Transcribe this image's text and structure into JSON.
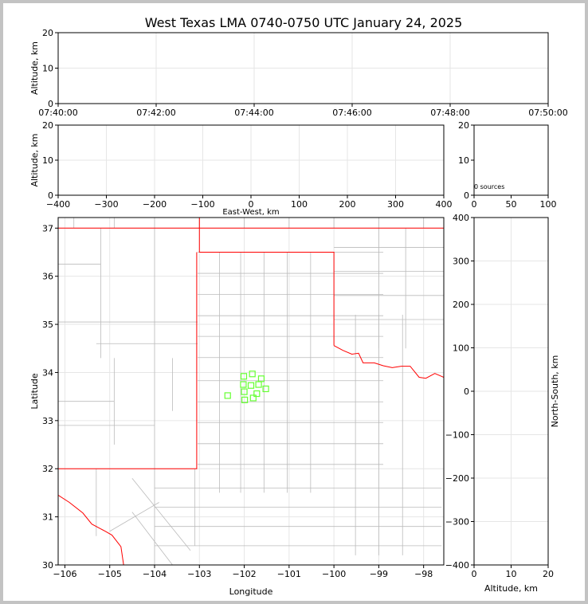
{
  "title": "West Texas LMA 0740-0750 UTC January 24, 2025",
  "colors": {
    "state": "#ff0000",
    "county": "#bbbbbb",
    "grid": "#e6e6e6",
    "source": "#66ff33",
    "axis": "#000000"
  },
  "panels": {
    "time_height": {
      "ylabel": "Altitude, km",
      "xticks": [
        "07:40:00",
        "07:42:00",
        "07:44:00",
        "07:46:00",
        "07:48:00",
        "07:50:00"
      ],
      "yticks": [
        "0",
        "10",
        "20"
      ]
    },
    "ew_height": {
      "ylabel": "Altitude, km",
      "xlabel": "East-West, km",
      "xticks": [
        "−400",
        "−300",
        "−200",
        "−100",
        "0",
        "100",
        "200",
        "300",
        "400"
      ],
      "yticks": [
        "0",
        "10",
        "20"
      ]
    },
    "hist": {
      "xticks": [
        "0",
        "50",
        "100"
      ],
      "yticks": [
        "0",
        "10",
        "20"
      ],
      "note": "0 sources"
    },
    "map": {
      "xlabel": "Longitude",
      "ylabel": "Latitude",
      "xticks": [
        "−106",
        "−105",
        "−104",
        "−103",
        "−102",
        "−101",
        "−100",
        "−99",
        "−98"
      ],
      "yticks": [
        "30",
        "31",
        "32",
        "33",
        "34",
        "35",
        "36",
        "37"
      ]
    },
    "ns_height": {
      "ylabel": "North-South, km",
      "xlabel": "Altitude, km",
      "xticks": [
        "0",
        "10",
        "20"
      ],
      "yticks": [
        "−400",
        "−300",
        "−200",
        "−100",
        "0",
        "100",
        "200",
        "300",
        "400"
      ]
    }
  },
  "chart_data": [
    {
      "type": "scatter",
      "panel": "time_height",
      "xlim": [
        "07:40:00",
        "07:50:00"
      ],
      "ylim": [
        0,
        20
      ],
      "grid": true,
      "points": []
    },
    {
      "type": "scatter",
      "panel": "ew_height",
      "xlim": [
        -400,
        400
      ],
      "ylim": [
        0,
        20
      ],
      "grid": true,
      "points": []
    },
    {
      "type": "bar",
      "panel": "hist",
      "xlim": [
        0,
        100
      ],
      "ylim": [
        0,
        20
      ],
      "values": []
    },
    {
      "type": "scatter",
      "panel": "map",
      "xlim": [
        -106.15,
        -97.55
      ],
      "ylim": [
        30.0,
        37.22
      ],
      "grid": true,
      "points": [
        {
          "lon": -102.01,
          "lat": 33.92
        },
        {
          "lon": -101.82,
          "lat": 33.97
        },
        {
          "lon": -101.62,
          "lat": 33.87
        },
        {
          "lon": -102.02,
          "lat": 33.75
        },
        {
          "lon": -101.85,
          "lat": 33.73
        },
        {
          "lon": -101.68,
          "lat": 33.75
        },
        {
          "lon": -101.52,
          "lat": 33.66
        },
        {
          "lon": -102.0,
          "lat": 33.6
        },
        {
          "lon": -101.72,
          "lat": 33.56
        },
        {
          "lon": -102.37,
          "lat": 33.52
        },
        {
          "lon": -101.8,
          "lat": 33.47
        },
        {
          "lon": -101.99,
          "lat": 33.43
        }
      ]
    },
    {
      "type": "scatter",
      "panel": "ns_height",
      "xlim": [
        0,
        20
      ],
      "ylim": [
        -400,
        400
      ],
      "grid": true,
      "points": []
    }
  ]
}
